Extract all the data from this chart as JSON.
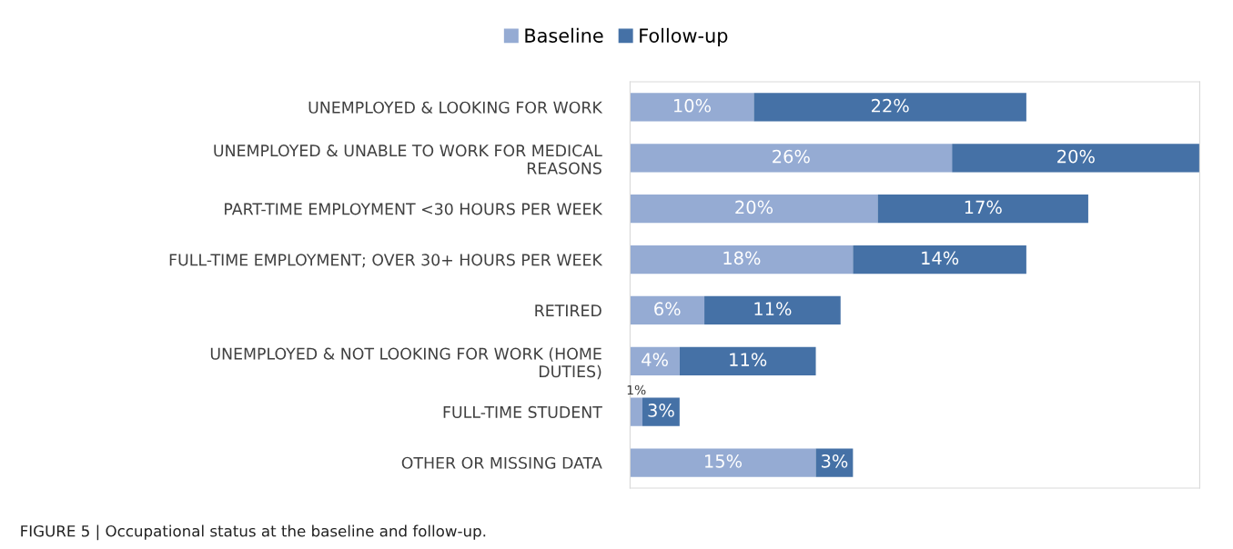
{
  "chart_data": {
    "type": "bar",
    "orientation": "horizontal",
    "stacked": true,
    "categories": [
      "UNEMPLOYED & LOOKING FOR WORK",
      "UNEMPLOYED & UNABLE TO WORK FOR MEDICAL REASONS",
      "PART-TIME EMPLOYMENT <30 HOURS PER WEEK",
      "FULL-TIME EMPLOYMENT; OVER 30+ HOURS PER WEEK",
      "RETIRED",
      "UNEMPLOYED & NOT LOOKING FOR WORK (HOME DUTIES)",
      "FULL-TIME STUDENT",
      "OTHER OR MISSING DATA"
    ],
    "series": [
      {
        "name": "Baseline",
        "color": "#95abd3",
        "values": [
          10,
          26,
          20,
          18,
          6,
          4,
          1,
          15
        ],
        "value_labels": [
          "10%",
          "26%",
          "20%",
          "18%",
          "6%",
          "4%",
          "1%",
          "15%"
        ]
      },
      {
        "name": "Follow-up",
        "color": "#4571a6",
        "values": [
          22,
          20,
          17,
          14,
          11,
          11,
          3,
          3
        ],
        "value_labels": [
          "22%",
          "20%",
          "17%",
          "14%",
          "11%",
          "11%",
          "3%",
          "3%"
        ]
      }
    ],
    "legend": "top",
    "grid": false,
    "annotations": [
      "FIGURE 5 | Occupational status at the baseline and follow-up."
    ]
  }
}
